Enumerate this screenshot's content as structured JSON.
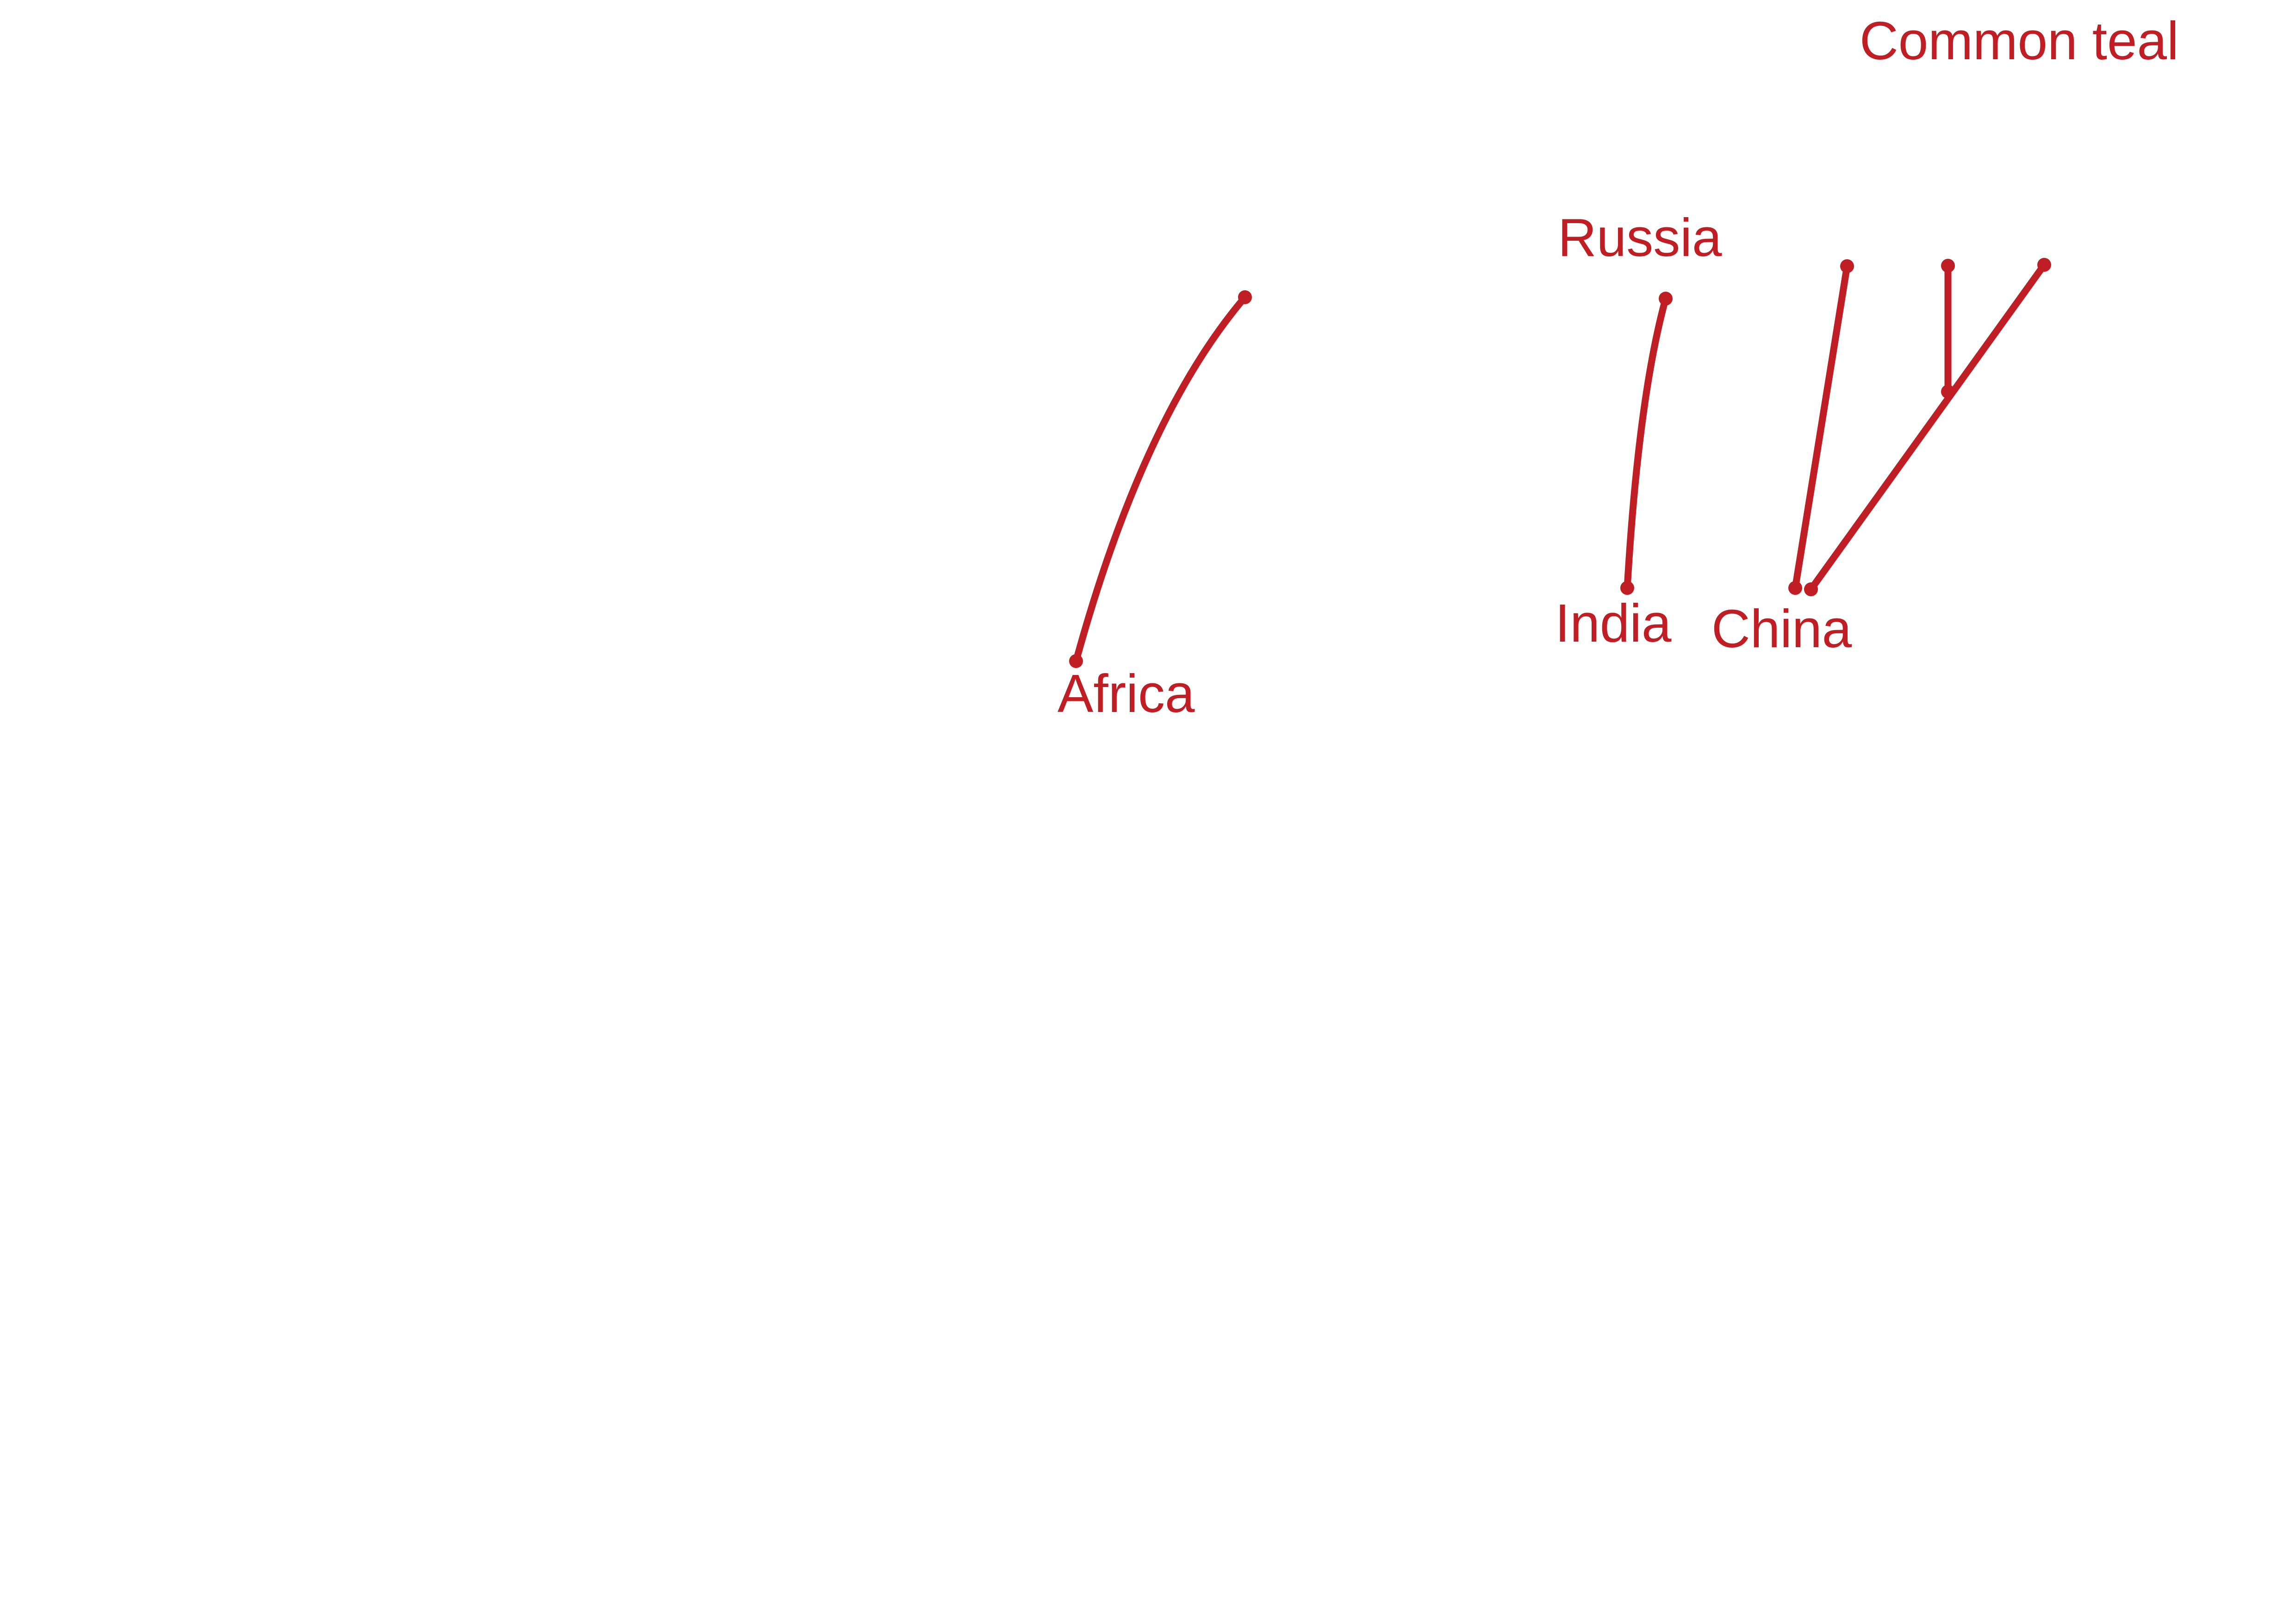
{
  "title": "Common teal",
  "places": {
    "russia": "Russia",
    "africa": "Africa",
    "india": "India",
    "china": "China"
  },
  "colors": {
    "route": "#be1e24",
    "background": "#ffffff"
  }
}
